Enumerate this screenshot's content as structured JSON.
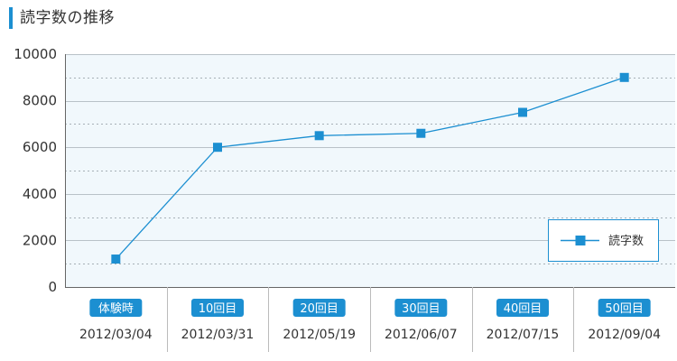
{
  "chart_data": {
    "type": "line",
    "title": "読字数の推移",
    "categories": [
      "体験時",
      "10回目",
      "20回目",
      "30回目",
      "40回目",
      "50回目"
    ],
    "dates": [
      "2012/03/04",
      "2012/03/31",
      "2012/05/19",
      "2012/06/07",
      "2012/07/15",
      "2012/09/04"
    ],
    "series": [
      {
        "name": "読字数",
        "values": [
          1200,
          6000,
          6500,
          6600,
          7500,
          9000
        ]
      }
    ],
    "ylim": [
      0,
      10000
    ],
    "yticks": [
      "0",
      "2000",
      "4000",
      "6000",
      "8000",
      "10000"
    ],
    "grid": true,
    "legend": "bottom-right",
    "colors": {
      "line": "#1c8fd1",
      "plot_bg": "#f1f8fc",
      "badge": "#1c8fd1"
    }
  }
}
